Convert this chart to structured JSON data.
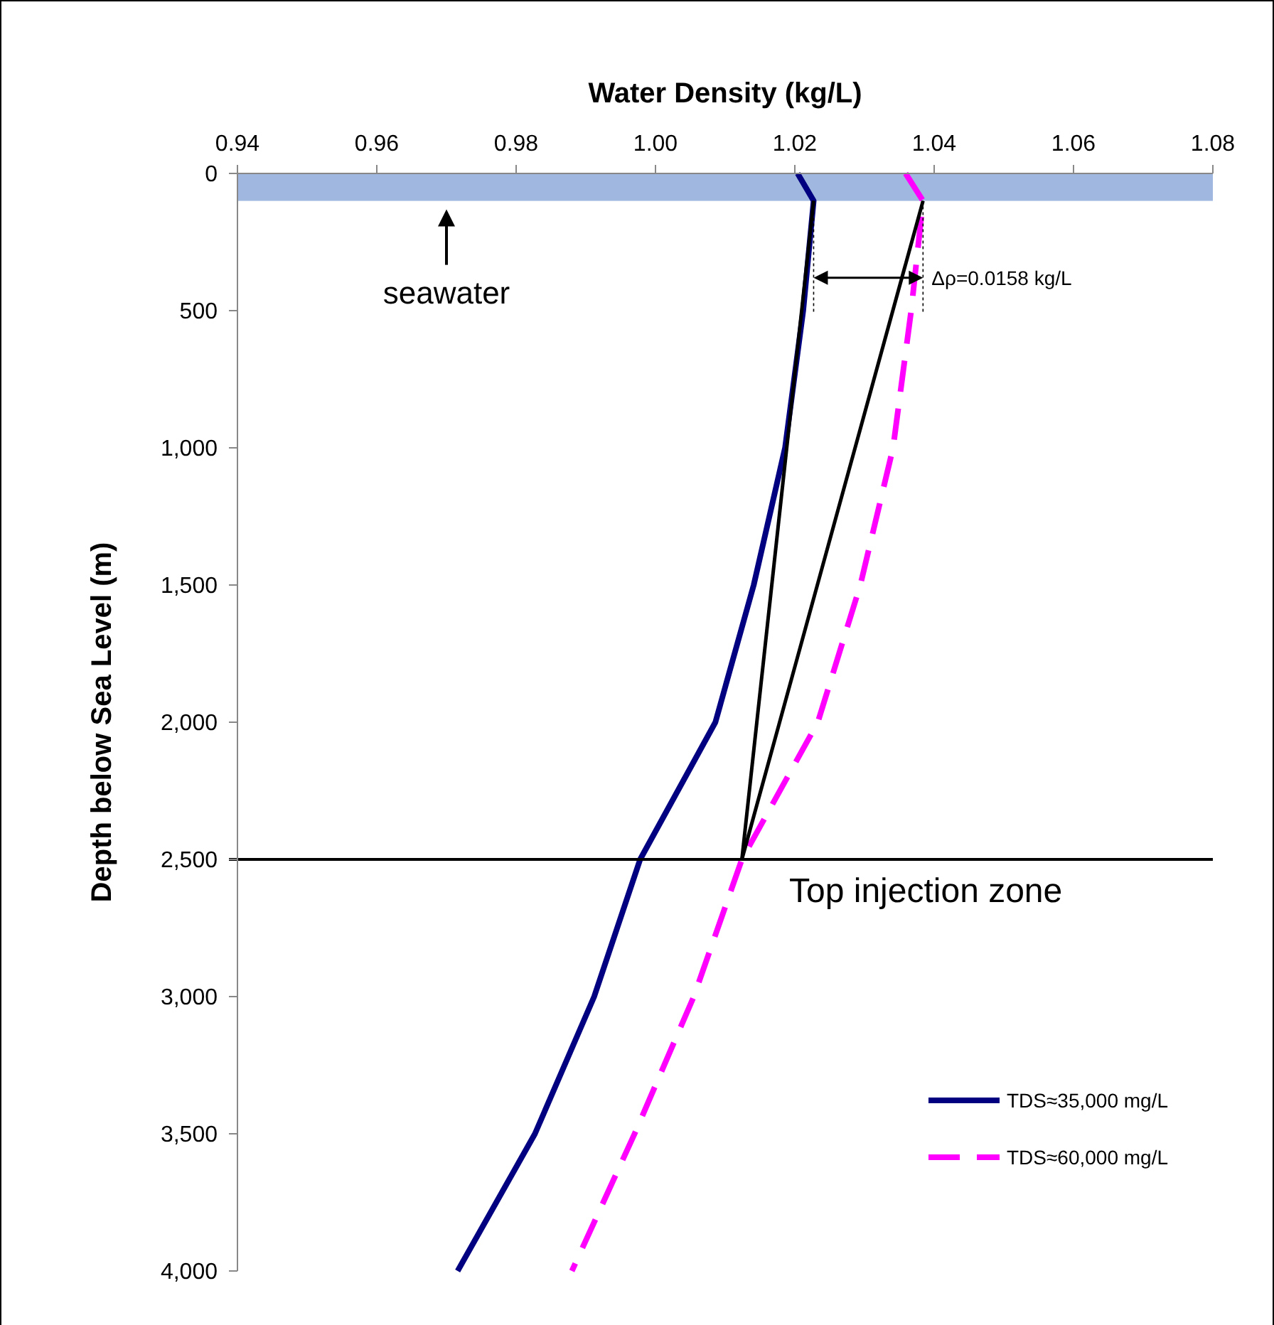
{
  "chart_data": {
    "type": "line",
    "xlabel": "Water Density (kg/L)",
    "ylabel": "Depth below Sea Level (m)",
    "xlim": [
      0.94,
      1.08
    ],
    "xticks": [
      0.94,
      0.96,
      0.98,
      {
        "value": 1,
        "label": "1.00"
      },
      1.02,
      1.04,
      1.06,
      1.08
    ],
    "ylim": [
      4000,
      0
    ],
    "yticks": [
      0,
      500,
      {
        "value": 1000,
        "label": "1,000"
      },
      {
        "value": 1500,
        "label": "1,500"
      },
      {
        "value": 2000,
        "label": "2,000"
      },
      {
        "value": 2500,
        "label": "2,500"
      },
      {
        "value": 3000,
        "label": "3,000"
      },
      {
        "value": 3500,
        "label": "3,500"
      },
      {
        "value": 4000,
        "label": "4,000"
      }
    ],
    "grid": false,
    "legend": "bottom right",
    "series": [
      {
        "name": "TDS≈35,000 mg/L",
        "color": "#000080",
        "line_style": "solid",
        "x": [
          1.0204,
          1.0227,
          1.0212,
          1.0186,
          1.0141,
          1.0086,
          0.9978,
          0.9912,
          0.9827,
          0.9716
        ],
        "values": [
          0,
          100,
          500,
          1000,
          1500,
          2000,
          2500,
          3000,
          3500,
          4000
        ]
      },
      {
        "name": "TDS≈60,000 mg/L",
        "color": "#ff00ff",
        "line_style": "dashed",
        "x": [
          1.0359,
          1.0384,
          1.0367,
          1.0341,
          1.0294,
          1.0233,
          1.0124,
          1.0055,
          0.997,
          0.988
        ],
        "values": [
          0,
          100,
          500,
          1000,
          1500,
          2000,
          2500,
          3000,
          3500,
          4000
        ]
      },
      {
        "color": "#000000",
        "line_style": "solid",
        "x": [
          1.0227,
          1.0124
        ],
        "values": [
          100,
          2500
        ]
      },
      {
        "color": "#000000",
        "line_style": "solid",
        "x": [
          1.0384,
          1.0124
        ],
        "values": [
          100,
          2500
        ]
      }
    ],
    "bands": [
      {
        "axis": "y",
        "from": 0,
        "to": 100,
        "label": "seawater",
        "color": "#a0b8e0"
      }
    ],
    "ref_lines": [
      {
        "axis": "y",
        "value": 2500,
        "label": "Top injection zone",
        "color": "#000000"
      }
    ],
    "annotations": [
      {
        "text": "Δρ=0.0158 kg/L",
        "x": 1.0384,
        "y": 380
      }
    ]
  }
}
